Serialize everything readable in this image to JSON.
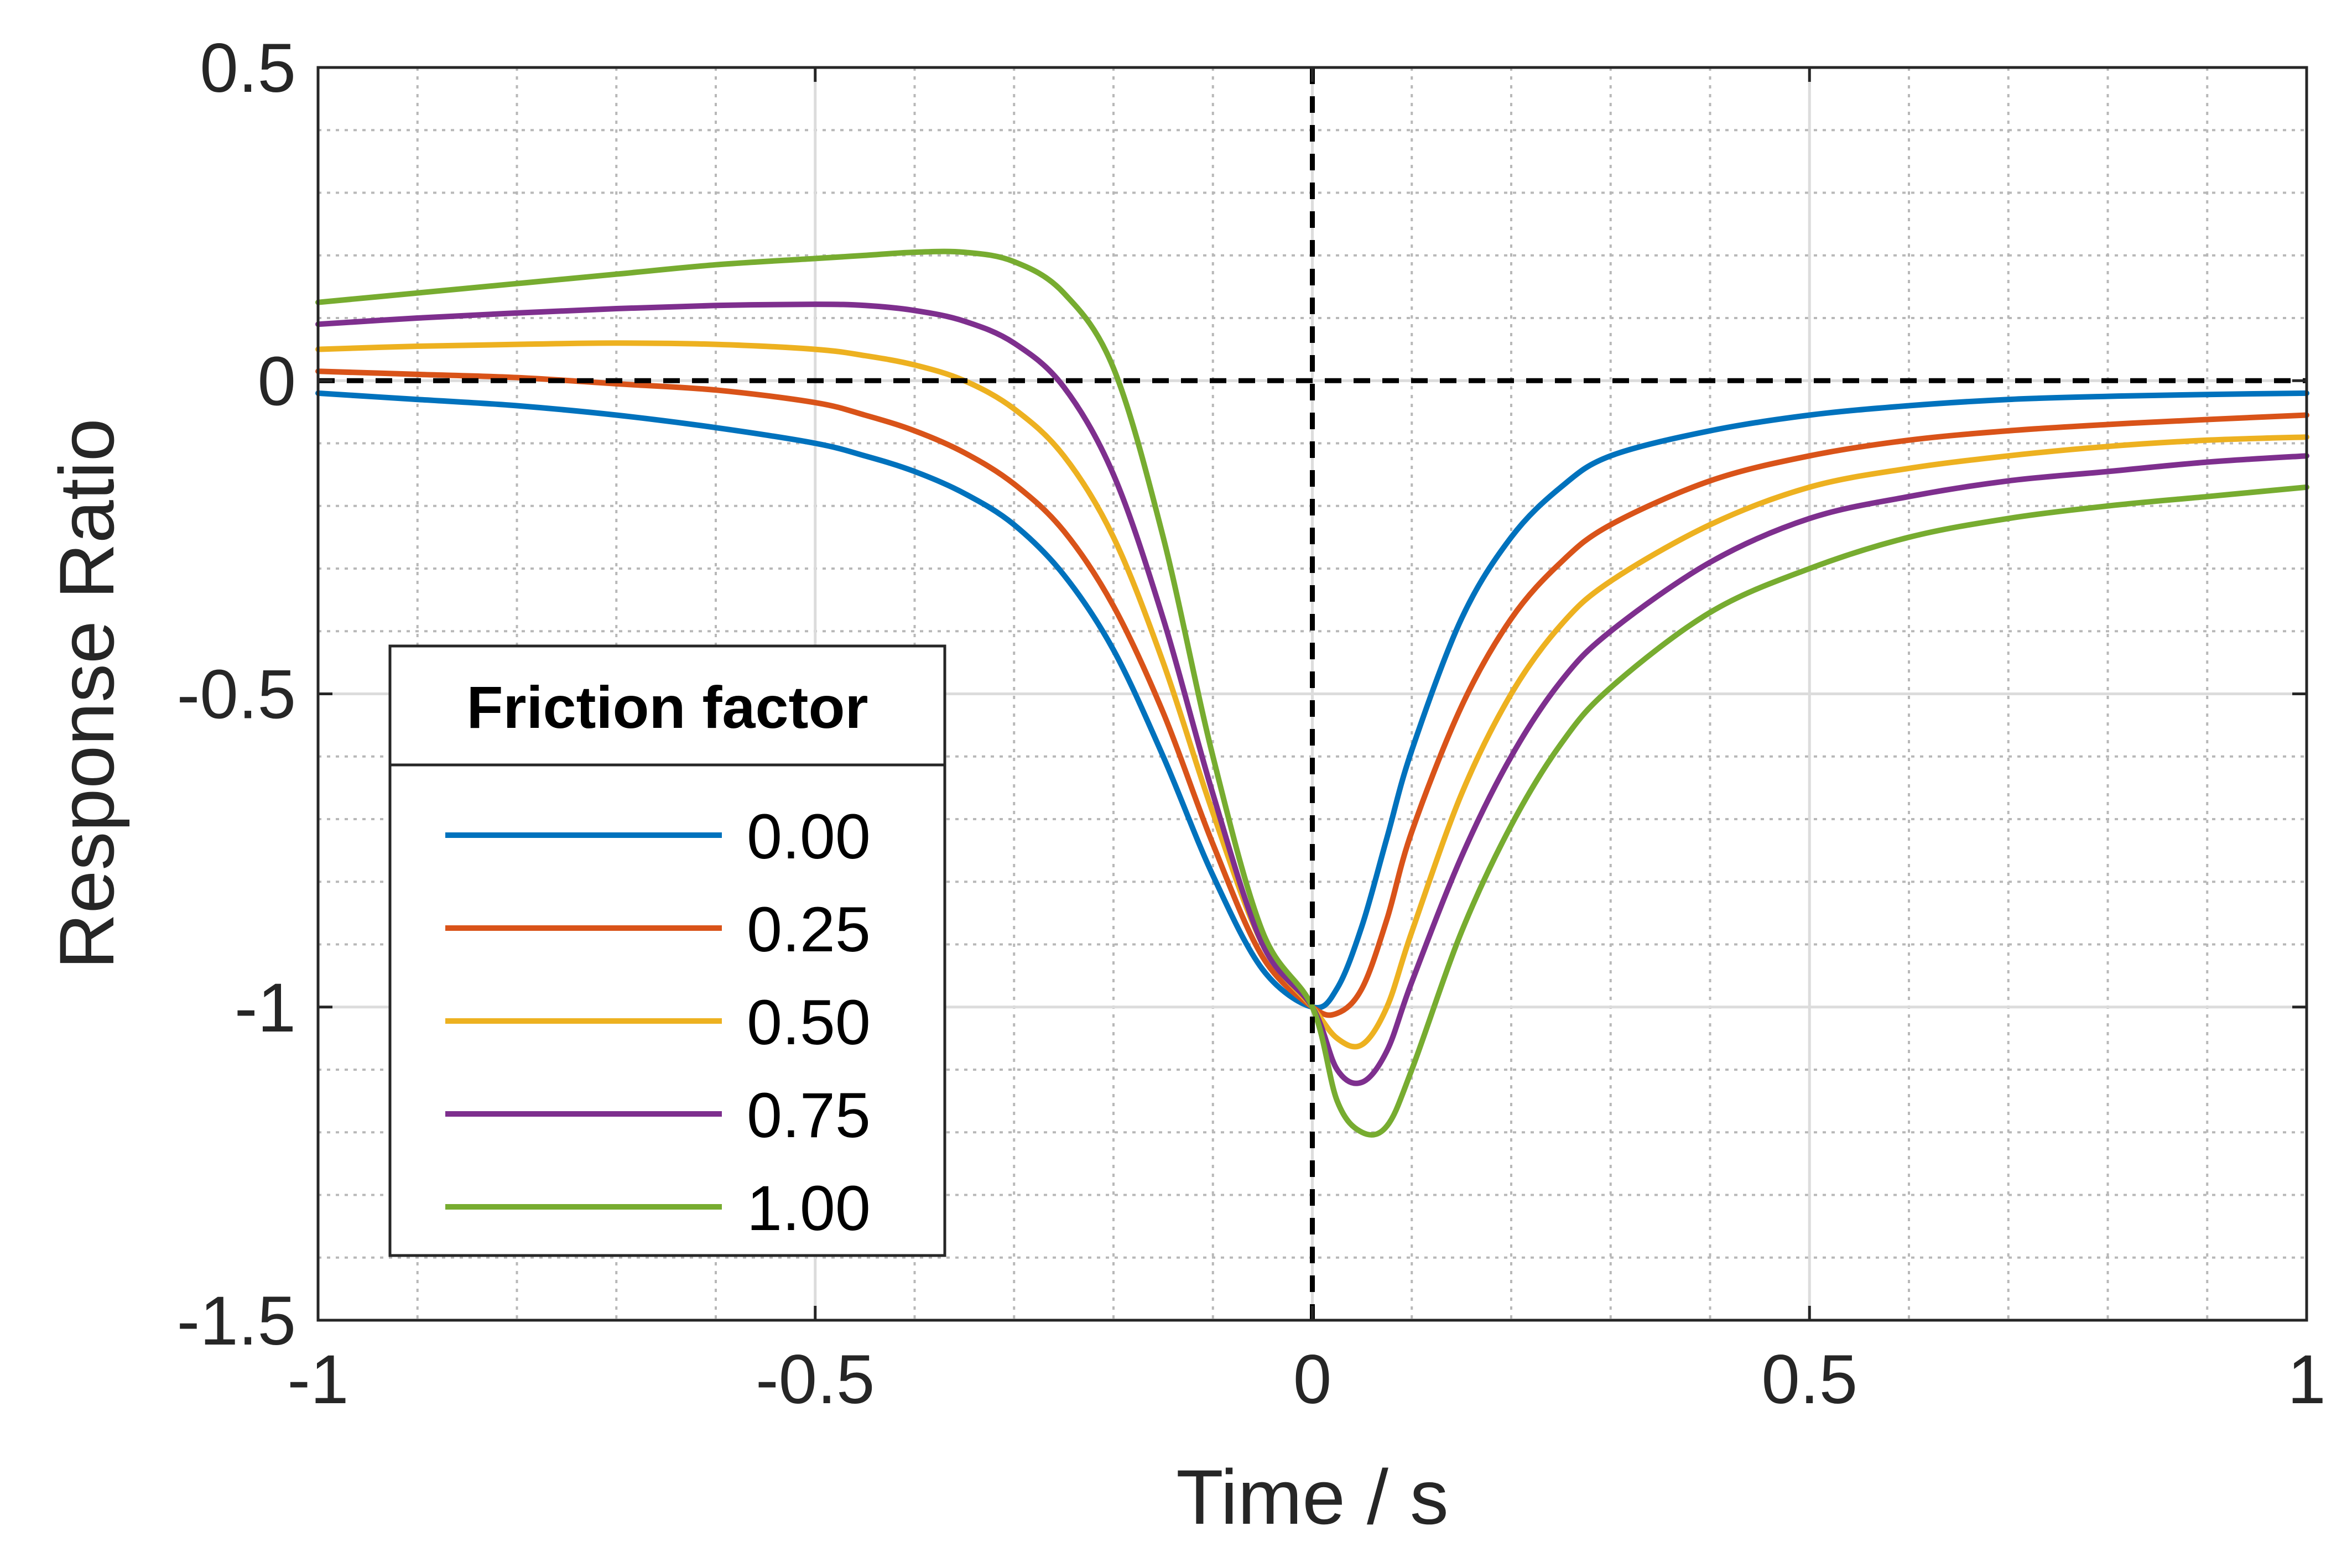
{
  "chart_data": {
    "type": "line",
    "title": "",
    "xlabel": "Time / s",
    "ylabel": "Response Ratio",
    "xlim": [
      -1,
      1
    ],
    "ylim": [
      -1.5,
      0.5
    ],
    "xticks": [
      -1,
      -0.5,
      0,
      0.5,
      1
    ],
    "xtick_labels": [
      "-1",
      "-0.5",
      "0",
      "0.5",
      "1"
    ],
    "yticks": [
      -1.5,
      -1,
      -0.5,
      0,
      0.5
    ],
    "ytick_labels": [
      "-1.5",
      "-1",
      "-0.5",
      "0",
      "0.5"
    ],
    "grid": "major solid, minor dotted",
    "reference_lines": {
      "x": 0,
      "y": 0,
      "style": "dashed"
    },
    "legend": {
      "title": "Friction factor",
      "location": "lower-left"
    },
    "series": [
      {
        "name": "0.00",
        "color": "#0072BD",
        "x": [
          -1,
          -0.9,
          -0.8,
          -0.7,
          -0.6,
          -0.5,
          -0.45,
          -0.4,
          -0.35,
          -0.3,
          -0.25,
          -0.2,
          -0.15,
          -0.1,
          -0.05,
          0,
          0.025,
          0.05,
          0.075,
          0.1,
          0.15,
          0.2,
          0.25,
          0.3,
          0.4,
          0.5,
          0.6,
          0.7,
          0.8,
          0.9,
          1
        ],
        "y": [
          -0.02,
          -0.03,
          -0.04,
          -0.055,
          -0.075,
          -0.1,
          -0.12,
          -0.145,
          -0.18,
          -0.23,
          -0.31,
          -0.43,
          -0.6,
          -0.79,
          -0.94,
          -1.0,
          -0.97,
          -0.87,
          -0.73,
          -0.59,
          -0.38,
          -0.25,
          -0.17,
          -0.12,
          -0.08,
          -0.055,
          -0.04,
          -0.03,
          -0.025,
          -0.022,
          -0.02
        ]
      },
      {
        "name": "0.25",
        "color": "#D95319",
        "x": [
          -1,
          -0.9,
          -0.8,
          -0.7,
          -0.6,
          -0.5,
          -0.45,
          -0.4,
          -0.35,
          -0.3,
          -0.25,
          -0.2,
          -0.15,
          -0.1,
          -0.05,
          0,
          0.025,
          0.05,
          0.075,
          0.1,
          0.15,
          0.2,
          0.25,
          0.3,
          0.4,
          0.5,
          0.6,
          0.7,
          0.8,
          0.9,
          1
        ],
        "y": [
          0.015,
          0.01,
          0.005,
          -0.005,
          -0.015,
          -0.035,
          -0.055,
          -0.08,
          -0.115,
          -0.165,
          -0.24,
          -0.36,
          -0.53,
          -0.74,
          -0.92,
          -1.0,
          -1.01,
          -0.97,
          -0.86,
          -0.72,
          -0.52,
          -0.38,
          -0.29,
          -0.23,
          -0.16,
          -0.12,
          -0.095,
          -0.08,
          -0.07,
          -0.062,
          -0.055
        ]
      },
      {
        "name": "0.50",
        "color": "#EDB120",
        "x": [
          -1,
          -0.9,
          -0.8,
          -0.7,
          -0.6,
          -0.5,
          -0.45,
          -0.4,
          -0.35,
          -0.3,
          -0.25,
          -0.2,
          -0.15,
          -0.1,
          -0.05,
          0,
          0.025,
          0.05,
          0.075,
          0.1,
          0.15,
          0.2,
          0.25,
          0.3,
          0.4,
          0.5,
          0.6,
          0.7,
          0.8,
          0.9,
          1
        ],
        "y": [
          0.05,
          0.055,
          0.058,
          0.06,
          0.058,
          0.05,
          0.04,
          0.025,
          0.0,
          -0.045,
          -0.12,
          -0.25,
          -0.45,
          -0.69,
          -0.9,
          -1.0,
          -1.05,
          -1.06,
          -1.0,
          -0.88,
          -0.66,
          -0.5,
          -0.39,
          -0.32,
          -0.23,
          -0.17,
          -0.14,
          -0.12,
          -0.105,
          -0.095,
          -0.09
        ]
      },
      {
        "name": "0.75",
        "color": "#7E2F8E",
        "x": [
          -1,
          -0.9,
          -0.8,
          -0.7,
          -0.6,
          -0.5,
          -0.45,
          -0.4,
          -0.35,
          -0.3,
          -0.25,
          -0.2,
          -0.15,
          -0.1,
          -0.05,
          0,
          0.025,
          0.05,
          0.075,
          0.1,
          0.15,
          0.2,
          0.25,
          0.3,
          0.4,
          0.5,
          0.6,
          0.7,
          0.8,
          0.9,
          1
        ],
        "y": [
          0.09,
          0.1,
          0.108,
          0.115,
          0.12,
          0.122,
          0.12,
          0.112,
          0.095,
          0.06,
          -0.01,
          -0.15,
          -0.38,
          -0.66,
          -0.9,
          -1.0,
          -1.1,
          -1.12,
          -1.07,
          -0.96,
          -0.76,
          -0.6,
          -0.48,
          -0.4,
          -0.29,
          -0.22,
          -0.185,
          -0.16,
          -0.145,
          -0.13,
          -0.12
        ]
      },
      {
        "name": "1.00",
        "color": "#77AC30",
        "x": [
          -1,
          -0.9,
          -0.8,
          -0.7,
          -0.6,
          -0.5,
          -0.45,
          -0.4,
          -0.35,
          -0.3,
          -0.25,
          -0.2,
          -0.15,
          -0.1,
          -0.05,
          0,
          0.025,
          0.05,
          0.075,
          0.1,
          0.15,
          0.2,
          0.25,
          0.3,
          0.4,
          0.5,
          0.6,
          0.7,
          0.8,
          0.9,
          1
        ],
        "y": [
          0.125,
          0.14,
          0.155,
          0.17,
          0.185,
          0.195,
          0.2,
          0.205,
          0.205,
          0.19,
          0.14,
          0.02,
          -0.25,
          -0.6,
          -0.88,
          -1.0,
          -1.15,
          -1.2,
          -1.19,
          -1.1,
          -0.88,
          -0.71,
          -0.58,
          -0.49,
          -0.37,
          -0.3,
          -0.25,
          -0.22,
          -0.2,
          -0.185,
          -0.17
        ]
      }
    ]
  }
}
